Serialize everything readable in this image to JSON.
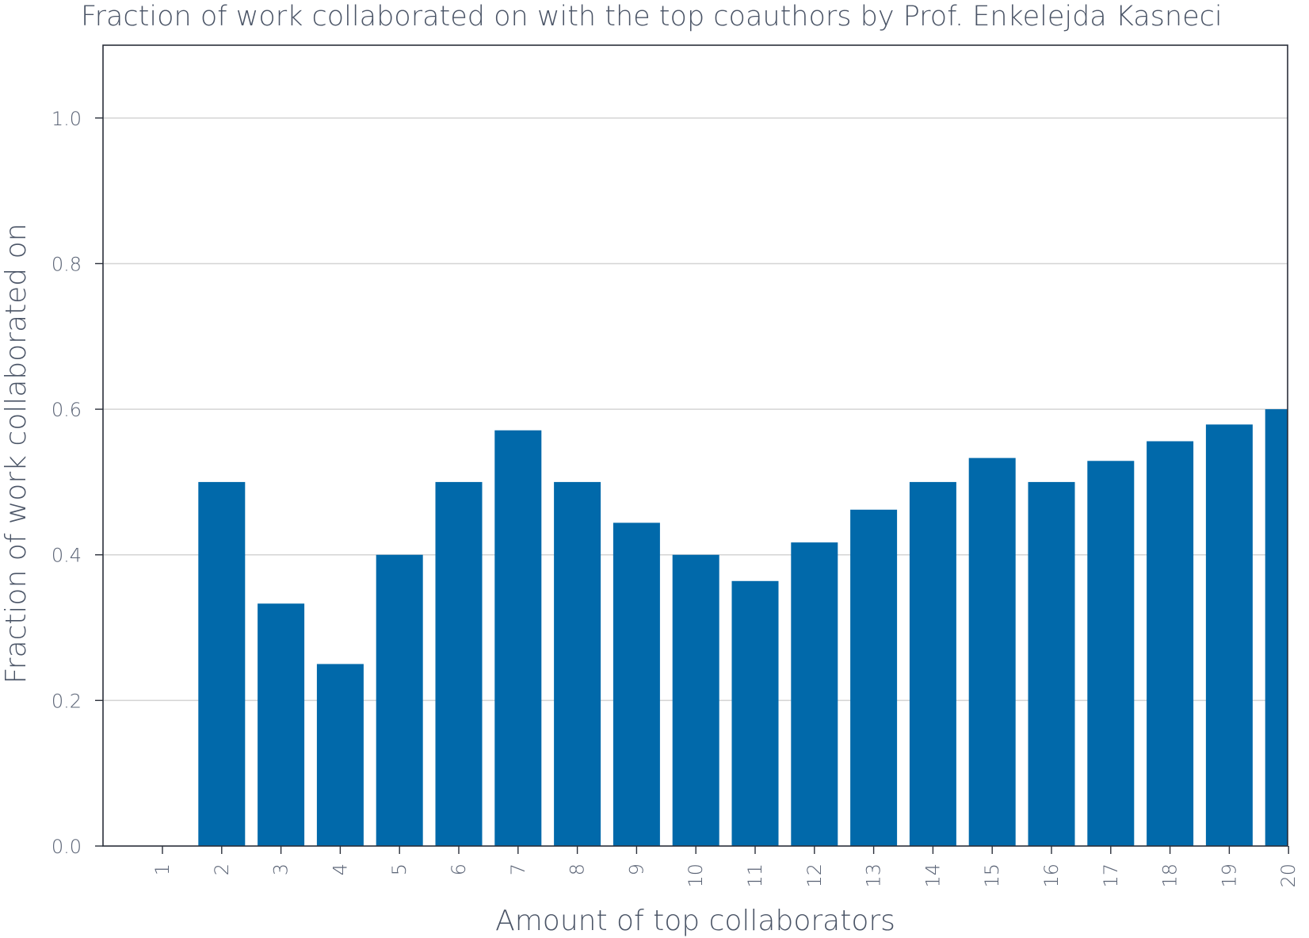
{
  "chart_data": {
    "type": "bar",
    "title": "Fraction of work collaborated on with the top coauthors by Prof. Enkelejda Kasneci",
    "xlabel": "Amount of top collaborators",
    "ylabel": "Fraction of work collaborated on",
    "categories": [
      "1",
      "2",
      "3",
      "4",
      "5",
      "6",
      "7",
      "8",
      "9",
      "10",
      "11",
      "12",
      "13",
      "14",
      "15",
      "16",
      "17",
      "18",
      "19",
      "20"
    ],
    "values": [
      0.0,
      0.5,
      0.333,
      0.25,
      0.4,
      0.5,
      0.571,
      0.5,
      0.444,
      0.4,
      0.364,
      0.417,
      0.462,
      0.5,
      0.533,
      0.5,
      0.529,
      0.556,
      0.579,
      0.6
    ],
    "ylim": [
      0,
      1.1
    ],
    "yticks": [
      "0.0",
      "0.2",
      "0.4",
      "0.6",
      "0.8",
      "1.0"
    ],
    "grid": true,
    "bar_color": "#0169aa"
  }
}
